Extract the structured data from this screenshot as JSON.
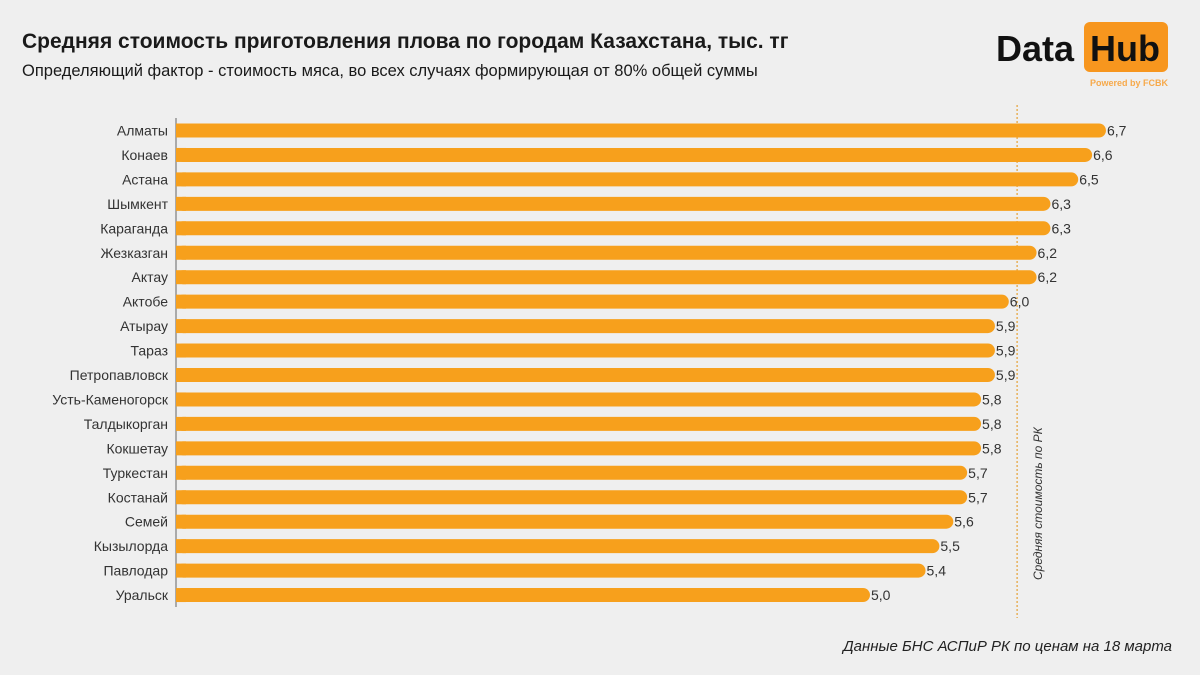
{
  "header": {
    "title": "Средняя стоимость приготовления плова по городам Казахстана, тыс. тг",
    "subtitle": "Определяющий фактор - стоимость мяса, во всех случаях формирующая от 80% общей суммы"
  },
  "logo": {
    "data": "Data",
    "hub": "Hub",
    "powered": "Powered by FCBK"
  },
  "source": "Данные БНС АСПиР РК по ценам на 18 марта",
  "chart_data": {
    "type": "bar",
    "orientation": "horizontal",
    "title": "Средняя стоимость приготовления плова по городам Казахстана, тыс. тг",
    "categories": [
      "Алматы",
      "Конаев",
      "Астана",
      "Шымкент",
      "Караганда",
      "Жезказган",
      "Актау",
      "Актобе",
      "Атырау",
      "Тараз",
      "Петропавловск",
      "Усть-Каменогорск",
      "Талдыкорган",
      "Кокшетау",
      "Туркестан",
      "Костанай",
      "Семей",
      "Кызылорда",
      "Павлодар",
      "Уральск"
    ],
    "values": [
      6.7,
      6.6,
      6.5,
      6.3,
      6.3,
      6.2,
      6.2,
      6.0,
      5.9,
      5.9,
      5.9,
      5.8,
      5.8,
      5.8,
      5.7,
      5.7,
      5.6,
      5.5,
      5.4,
      5.0
    ],
    "value_labels": [
      "6,7",
      "6,6",
      "6,5",
      "6,3",
      "6,3",
      "6,2",
      "6,2",
      "6,0",
      "5,9",
      "5,9",
      "5,9",
      "5,8",
      "5,8",
      "5,8",
      "5,7",
      "5,7",
      "5,6",
      "5,5",
      "5,4",
      "5,0"
    ],
    "xlim": [
      0,
      6.8
    ],
    "reference_line": {
      "label": "Средняя стоимость по РК",
      "value": 6.06
    },
    "bar_color": "#f7a01c",
    "reference_color": "#e8b15a",
    "grid": false
  }
}
